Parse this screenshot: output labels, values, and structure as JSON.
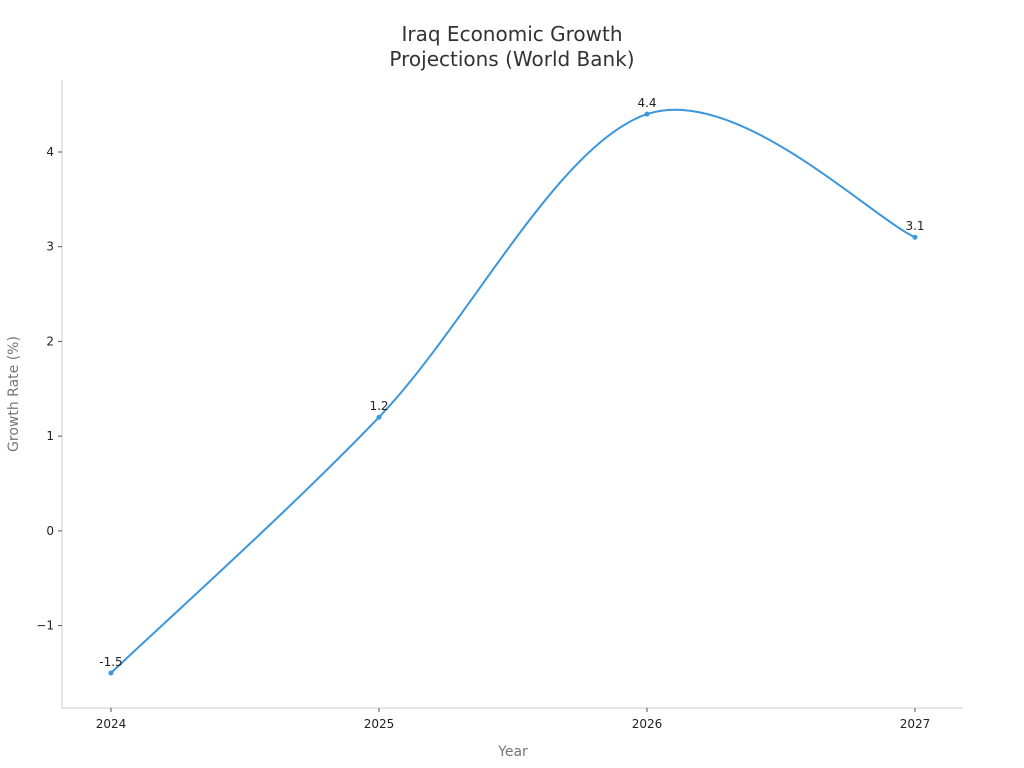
{
  "chart_data": {
    "type": "line",
    "title": [
      "Iraq Economic Growth",
      "Projections (World Bank)"
    ],
    "xlabel": "Year",
    "ylabel": "Growth Rate (%)",
    "categories": [
      "2024",
      "2025",
      "2026",
      "2027"
    ],
    "series": [
      {
        "values": [
          -1.5,
          1.2,
          4.4,
          3.1
        ],
        "data_labels": [
          "-1.5",
          "1.2",
          "4.4",
          "3.1"
        ]
      }
    ],
    "yticks": [
      -1,
      0,
      1,
      2,
      3,
      4
    ],
    "ytick_labels": [
      "−1",
      "0",
      "1",
      "2",
      "3",
      "4"
    ],
    "ylim": [
      -1.87,
      4.76
    ],
    "grid": false,
    "legend": "none",
    "smooth": true,
    "colors": {
      "line": "#3a96dd",
      "marker": "#3a96dd"
    }
  }
}
